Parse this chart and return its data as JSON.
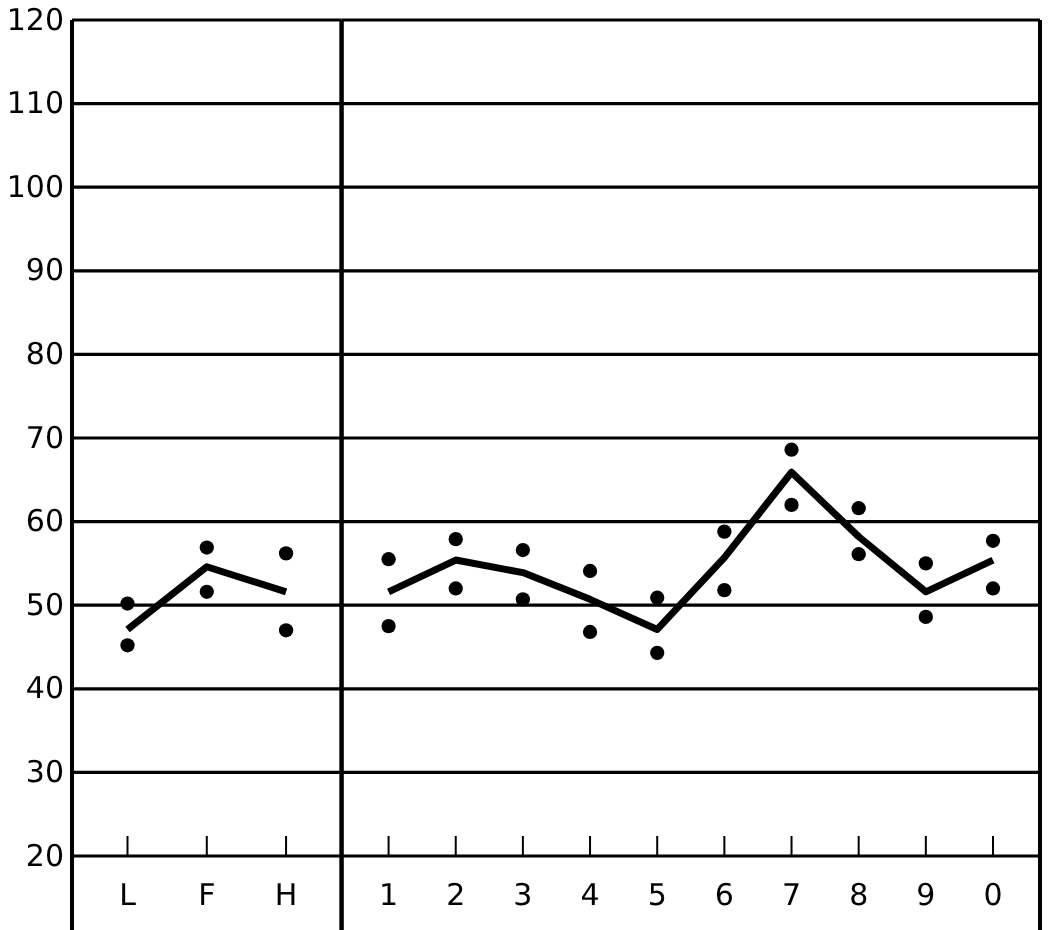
{
  "chart_data": [
    {
      "type": "line",
      "categories": [
        "L",
        "F",
        "H"
      ],
      "ylim": [
        20,
        120
      ],
      "yticks": [
        20,
        30,
        40,
        50,
        60,
        70,
        80,
        90,
        100,
        110,
        120
      ],
      "grid": "y",
      "series": [
        {
          "color": "#000000",
          "marker": "none",
          "values": [
            47.1,
            54.6,
            51.6
          ]
        },
        {
          "type": "scatter",
          "color": "#000000",
          "marker": "circle",
          "values": [
            50.2,
            56.9,
            56.2
          ]
        },
        {
          "type": "scatter",
          "color": "#000000",
          "marker": "circle",
          "values": [
            45.2,
            51.6,
            47.0
          ]
        }
      ]
    },
    {
      "type": "line",
      "categories": [
        "1",
        "2",
        "3",
        "4",
        "5",
        "6",
        "7",
        "8",
        "9",
        "0"
      ],
      "ylim": [
        20,
        120
      ],
      "yticks": [
        20,
        30,
        40,
        50,
        60,
        70,
        80,
        90,
        100,
        110,
        120
      ],
      "grid": "y",
      "tick_labels": "x",
      "series": [
        {
          "color": "#000000",
          "marker": "none",
          "values": [
            51.6,
            55.4,
            53.9,
            50.7,
            47.1,
            55.7,
            65.9,
            58.2,
            51.6,
            55.4
          ]
        },
        {
          "type": "scatter",
          "color": "#000000",
          "marker": "circle",
          "values": [
            55.5,
            57.9,
            56.6,
            54.1,
            50.9,
            58.8,
            68.6,
            61.6,
            55.0,
            57.7
          ]
        },
        {
          "type": "scatter",
          "color": "#000000",
          "marker": "circle",
          "values": [
            47.5,
            52.0,
            50.7,
            46.8,
            44.3,
            51.8,
            62.0,
            56.1,
            48.6,
            52.0
          ]
        }
      ]
    }
  ]
}
